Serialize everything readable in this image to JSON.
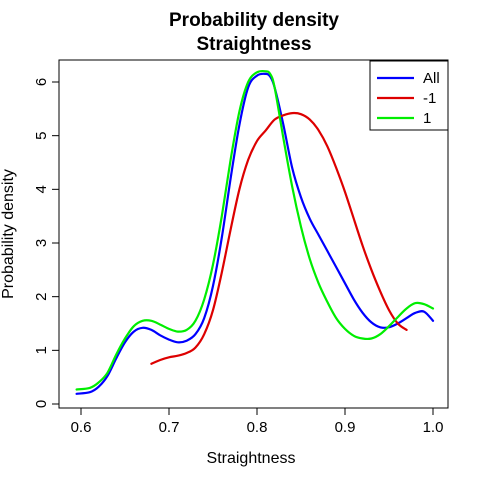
{
  "chart_data": {
    "type": "line",
    "title": "Probability density",
    "subtitle": "Straightness",
    "xlabel": "Straightness",
    "ylabel": "Probability density",
    "xlim": [
      0.6,
      1.0
    ],
    "ylim": [
      0,
      6
    ],
    "x_ticks": [
      "0.6",
      "0.7",
      "0.8",
      "0.9",
      "1.0"
    ],
    "y_ticks": [
      "0",
      "1",
      "2",
      "3",
      "4",
      "5",
      "6"
    ],
    "grid": false,
    "legend_position": "top-right",
    "series": [
      {
        "name": "All",
        "color": "#0000ff",
        "x": [
          0.595,
          0.61,
          0.62,
          0.63,
          0.64,
          0.65,
          0.66,
          0.67,
          0.68,
          0.69,
          0.7,
          0.71,
          0.72,
          0.73,
          0.74,
          0.75,
          0.76,
          0.77,
          0.78,
          0.79,
          0.8,
          0.81,
          0.815,
          0.82,
          0.83,
          0.84,
          0.85,
          0.86,
          0.87,
          0.88,
          0.89,
          0.9,
          0.91,
          0.92,
          0.93,
          0.94,
          0.95,
          0.96,
          0.97,
          0.98,
          0.99,
          1.0
        ],
        "y": [
          0.19,
          0.22,
          0.32,
          0.52,
          0.85,
          1.15,
          1.35,
          1.42,
          1.38,
          1.28,
          1.2,
          1.15,
          1.18,
          1.3,
          1.6,
          2.2,
          3.1,
          4.2,
          5.2,
          5.9,
          6.12,
          6.15,
          6.1,
          5.9,
          5.2,
          4.4,
          3.85,
          3.45,
          3.15,
          2.85,
          2.55,
          2.25,
          1.95,
          1.7,
          1.52,
          1.43,
          1.43,
          1.5,
          1.6,
          1.7,
          1.72,
          1.55
        ]
      },
      {
        "name": "-1",
        "color": "#dd0000",
        "x": [
          0.68,
          0.69,
          0.7,
          0.71,
          0.72,
          0.73,
          0.74,
          0.75,
          0.76,
          0.77,
          0.78,
          0.79,
          0.8,
          0.81,
          0.82,
          0.83,
          0.84,
          0.85,
          0.86,
          0.87,
          0.88,
          0.89,
          0.9,
          0.91,
          0.92,
          0.93,
          0.94,
          0.95,
          0.96,
          0.97
        ],
        "y": [
          0.75,
          0.82,
          0.87,
          0.9,
          0.95,
          1.05,
          1.3,
          1.75,
          2.45,
          3.25,
          4.0,
          4.55,
          4.9,
          5.1,
          5.3,
          5.38,
          5.42,
          5.4,
          5.3,
          5.1,
          4.8,
          4.4,
          3.95,
          3.45,
          2.95,
          2.5,
          2.1,
          1.75,
          1.5,
          1.38
        ]
      },
      {
        "name": "1",
        "color": "#00ee00",
        "x": [
          0.595,
          0.61,
          0.62,
          0.63,
          0.64,
          0.65,
          0.66,
          0.67,
          0.68,
          0.69,
          0.7,
          0.71,
          0.72,
          0.73,
          0.74,
          0.75,
          0.76,
          0.77,
          0.78,
          0.79,
          0.8,
          0.81,
          0.815,
          0.82,
          0.83,
          0.84,
          0.85,
          0.86,
          0.87,
          0.88,
          0.89,
          0.9,
          0.91,
          0.92,
          0.93,
          0.94,
          0.95,
          0.96,
          0.97,
          0.98,
          0.99,
          1.0
        ],
        "y": [
          0.27,
          0.3,
          0.4,
          0.58,
          0.92,
          1.22,
          1.45,
          1.55,
          1.55,
          1.48,
          1.4,
          1.35,
          1.38,
          1.55,
          1.95,
          2.6,
          3.5,
          4.55,
          5.45,
          6.0,
          6.18,
          6.2,
          6.15,
          5.9,
          4.95,
          4.05,
          3.3,
          2.7,
          2.25,
          1.9,
          1.6,
          1.4,
          1.27,
          1.22,
          1.22,
          1.3,
          1.45,
          1.62,
          1.78,
          1.88,
          1.86,
          1.78
        ]
      }
    ]
  }
}
